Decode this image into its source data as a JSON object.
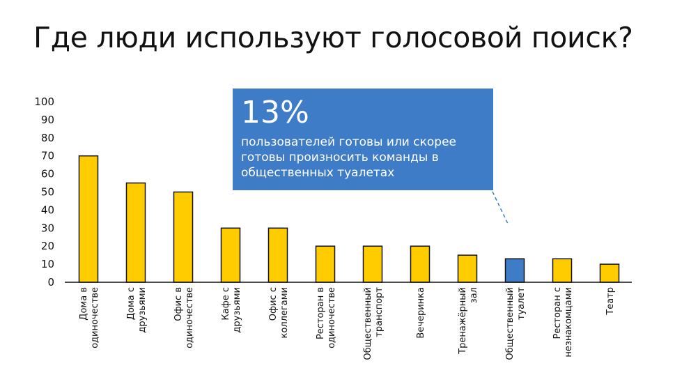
{
  "title": "Где люди используют голосовой поиск?",
  "callout": {
    "value": "13%",
    "text": "пользователей готовы или скорее готовы произносить команды в общественных туалетах"
  },
  "chart_data": {
    "type": "bar",
    "title": "Где люди используют голосовой поиск?",
    "xlabel": "",
    "ylabel": "",
    "ylim": [
      0,
      100
    ],
    "yticks": [
      0,
      10,
      20,
      30,
      40,
      50,
      60,
      70,
      80,
      90,
      100
    ],
    "grid": false,
    "categories": [
      [
        "Дома в",
        "одиночестве"
      ],
      [
        "Дома с",
        "друзьями"
      ],
      [
        "Офис в",
        "одиночестве"
      ],
      [
        "Кафе с",
        "друзьями"
      ],
      [
        "Офис с",
        "коллегами"
      ],
      [
        "Ресторан в",
        "одиночестве"
      ],
      [
        "Общественный",
        "транспорт"
      ],
      [
        "Вечеринка"
      ],
      [
        "Тренажёрный",
        "зал"
      ],
      [
        "Общественный",
        "туалет"
      ],
      [
        "Ресторан с",
        "незнакомцами"
      ],
      [
        "Театр"
      ]
    ],
    "values": [
      70,
      55,
      50,
      30,
      30,
      20,
      20,
      20,
      15,
      13,
      13,
      10
    ],
    "highlight_index": 9,
    "colors": {
      "bar": "#ffcc00",
      "highlight": "#3f7cc8",
      "outline": "#111111",
      "axis": "#111111"
    }
  }
}
